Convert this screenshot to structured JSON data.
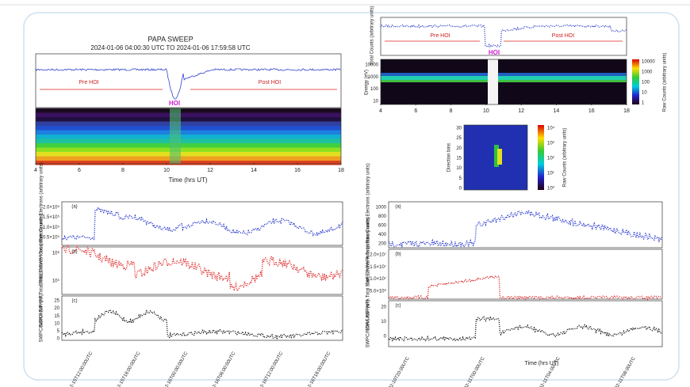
{
  "sweep_summary": {
    "title": "PAPA SWEEP",
    "subtitle": "2024-01-06 04:00:30 UTC TO 2024-01-06 17:59:58 UTC",
    "pre": "Pre HOI",
    "post": "Post HOI",
    "hoi": "HOI",
    "x_ticks": [
      4,
      6,
      8,
      10,
      12,
      14,
      16,
      18
    ],
    "x_label": "Time (hrs UT)"
  },
  "energy_panel": {
    "top_y_label": "Total Counts (arbitrary units)",
    "pre": "Pre HOI",
    "post": "Post HOI",
    "hoi": "HOI",
    "y_label": "Energy (eV)",
    "y_ticks": [
      10000,
      1000,
      100,
      10
    ],
    "colorbar_ticks": [
      10000,
      1000,
      100,
      10,
      1
    ],
    "colorbar_label": "Raw Counts (arbitrary units)",
    "x_ticks": [
      4,
      6,
      8,
      10,
      12,
      14,
      16,
      18
    ]
  },
  "direction_panel": {
    "y_label": "Direction bins",
    "y_ticks": [
      30,
      25,
      20,
      15,
      10,
      5,
      0
    ],
    "colorbar_ticks": [
      "10⁴",
      "10³",
      "10²",
      "10¹",
      "10⁰"
    ],
    "colorbar_label": "Raw Counts (arbitrary units)"
  },
  "december_panels": {
    "labels": [
      "(a)",
      "(b)",
      "(c)"
    ],
    "y_labels": [
      "SWEEP/PAPA Total Raw Counts Electrons (arbitrary units)",
      "SWICAS/PAPA Total Raw Counts Ions (arbitrary units)",
      "SWPC/NOAA IMF (nT)"
    ],
    "a_ticks": [
      "2.0×10⁵",
      "1.5×10⁵",
      "1.0×10⁵",
      "0.5×10⁵"
    ],
    "b_ticks": [
      "10⁶",
      "10⁵"
    ],
    "c_ticks": [
      25,
      20,
      15,
      10,
      5,
      0
    ],
    "dates": [
      "2023-12-15T12:00:00UTC",
      "2023-12-15T18:00:00UTC",
      "2023-12-16T00:00:00UTC",
      "2023-12-16T06:00:00UTC",
      "2023-12-16T12:00:00UTC",
      "2023-12-16T18:00:00UTC"
    ]
  },
  "february_panels": {
    "labels": [
      "(a)",
      "(b)",
      "(c)"
    ],
    "y_labels": [
      "SWEEP/PAPA Total Raw Counts Electrons (arbitrary units)",
      "SWICAS/PAPA Total Raw Counts Ions (arbitrary units)",
      "SWPC/NOAA IMF (nT)"
    ],
    "a_ticks": [
      1000,
      800,
      600,
      400,
      200
    ],
    "b_ticks": [
      "2.0×10⁷",
      "1.5×10⁷",
      "1.0×10⁷",
      "5.0×10⁶"
    ],
    "c_ticks": [
      20,
      10,
      0
    ],
    "dates": [
      "2024-02-10T20:00UTC",
      "2024-02-11T00:00UTC",
      "2024-02-11T04:00UTC",
      "2024-02-11T08:00UTC"
    ],
    "x_label": "Time (hrs UT)"
  }
}
